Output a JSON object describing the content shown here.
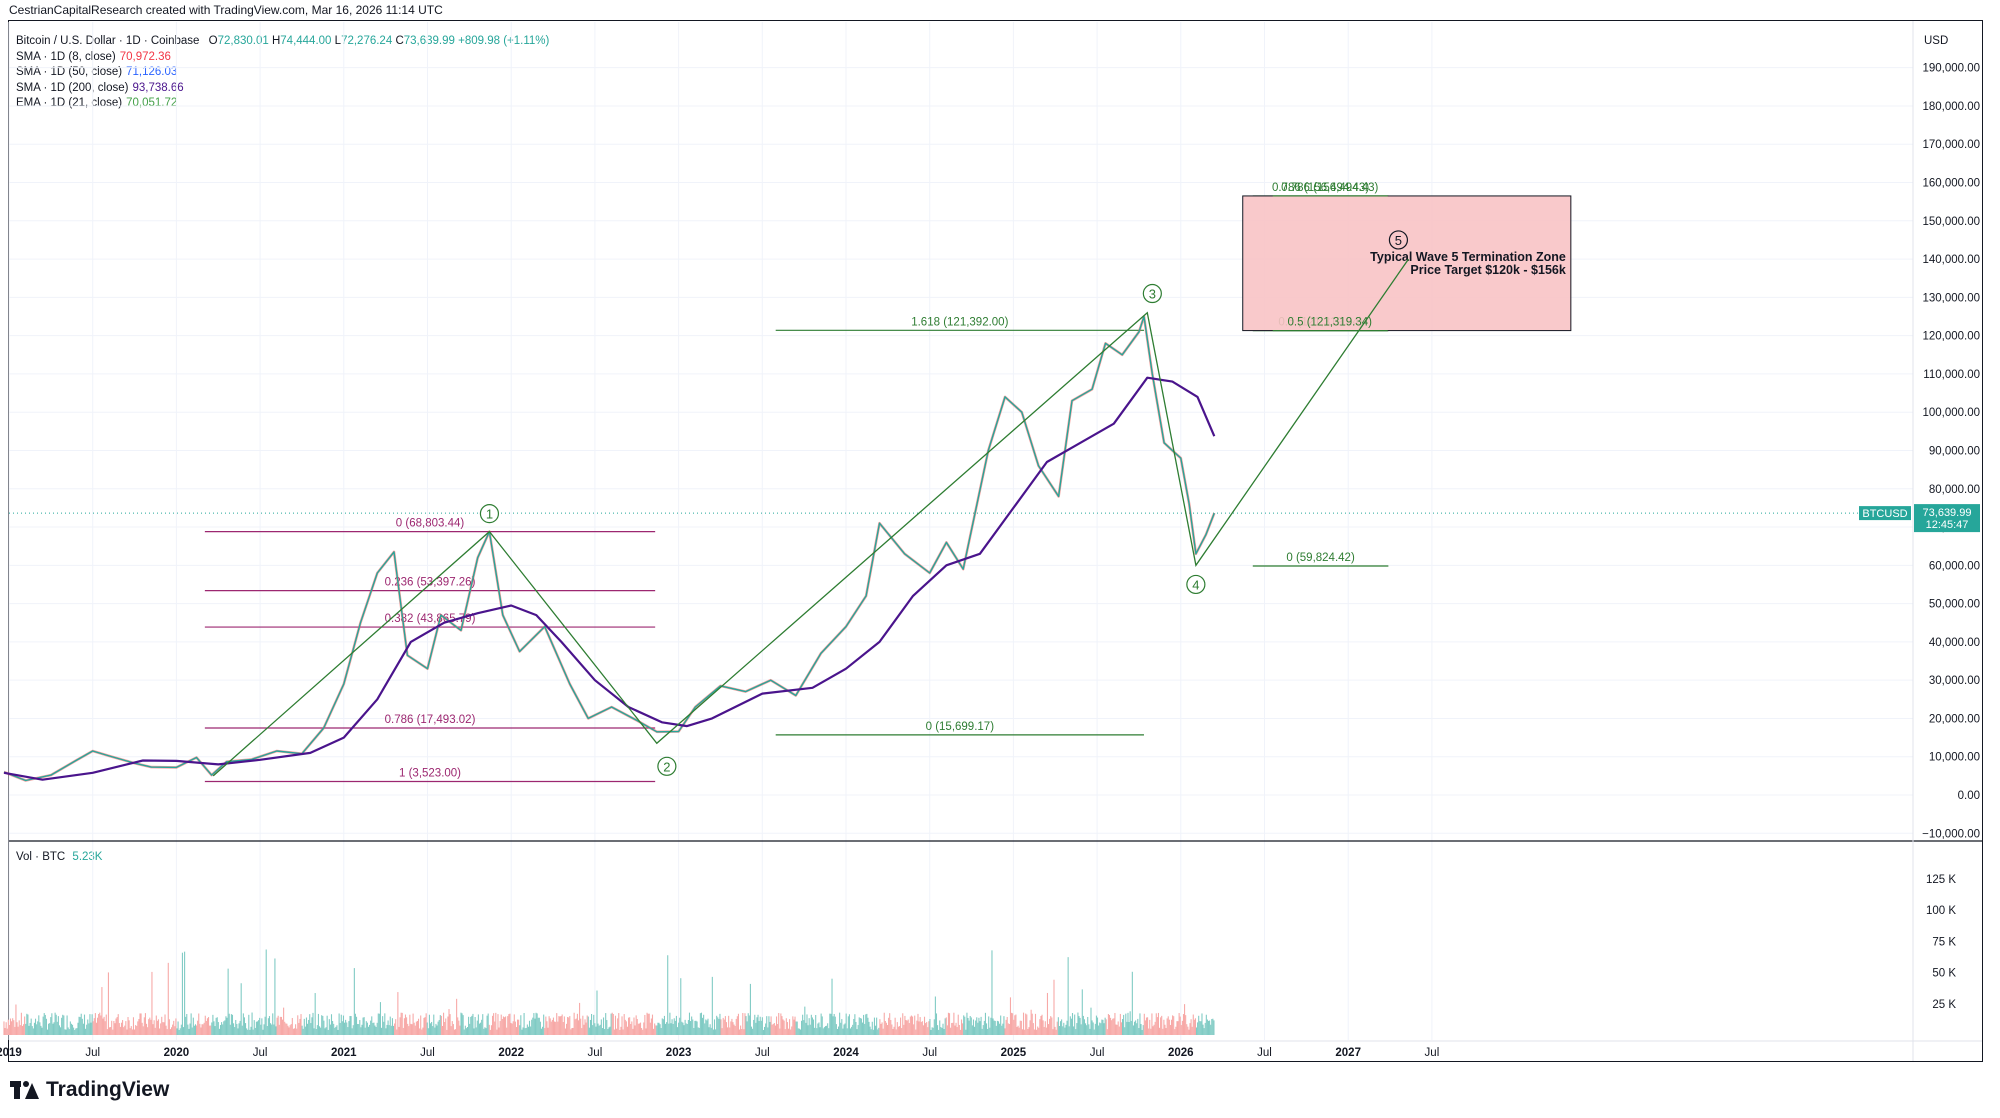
{
  "header": {
    "credit": "CestrianCapitalResearch created with TradingView.com, Mar 16, 2026 11:14 UTC",
    "symbol": "Bitcoin / U.S. Dollar · 1D · Coinbase",
    "ohlc": {
      "o_label": "O",
      "o": "72,830.01",
      "h_label": "H",
      "h": "74,444.00",
      "l_label": "L",
      "l": "72,276.24",
      "c_label": "C",
      "c": "73,639.99",
      "change": "+809.98 (+1.11%)"
    },
    "indicators": [
      {
        "label": "SMA · 1D (8, close)",
        "value": "70,972.36",
        "color": "#f23645"
      },
      {
        "label": "SMA · 1D (50, close)",
        "value": "71,126.03",
        "color": "#2962ff"
      },
      {
        "label": "SMA · 1D (200, close)",
        "value": "93,738.66",
        "color": "#4a148c"
      },
      {
        "label": "EMA · 1D (21, close)",
        "value": "70,051.72",
        "color": "#43a047"
      }
    ],
    "volume": {
      "label": "Vol · BTC",
      "value": "5.23K"
    }
  },
  "colors": {
    "up": "#26a69a",
    "down": "#ef5350",
    "sma8": "#f23645",
    "sma50": "#2962ff",
    "sma200": "#4a148c",
    "ema21": "#43a047",
    "fib_purple": "#9c2770",
    "fib_green": "#2e7d32",
    "zone_fill": "#f8c3c5",
    "price_tag": "#26a69a"
  },
  "chart_data": {
    "type": "line",
    "title": "Bitcoin / U.S. Dollar · 1D · Coinbase",
    "currency": "USD",
    "ylim": [
      -10000,
      200000
    ],
    "log_scale": false,
    "y_ticks": [
      "190,000.00",
      "180,000.00",
      "170,000.00",
      "160,000.00",
      "150,000.00",
      "140,000.00",
      "130,000.00",
      "120,000.00",
      "110,000.00",
      "100,000.00",
      "90,000.00",
      "80,000.00",
      "70,000.00",
      "60,000.00",
      "50,000.00",
      "40,000.00",
      "30,000.00",
      "20,000.00",
      "10,000.00",
      "0.00",
      "−10,000.00"
    ],
    "y_tick_values": [
      190000,
      180000,
      170000,
      160000,
      150000,
      140000,
      130000,
      120000,
      110000,
      100000,
      90000,
      80000,
      70000,
      60000,
      50000,
      40000,
      30000,
      20000,
      10000,
      0,
      -10000
    ],
    "x_ticks": [
      {
        "label": "2019",
        "t": 2019.0,
        "bold": true
      },
      {
        "label": "Jul",
        "t": 2019.5,
        "bold": false
      },
      {
        "label": "2020",
        "t": 2020.0,
        "bold": true
      },
      {
        "label": "Jul",
        "t": 2020.5,
        "bold": false
      },
      {
        "label": "2021",
        "t": 2021.0,
        "bold": true
      },
      {
        "label": "Jul",
        "t": 2021.5,
        "bold": false
      },
      {
        "label": "2022",
        "t": 2022.0,
        "bold": true
      },
      {
        "label": "Jul",
        "t": 2022.5,
        "bold": false
      },
      {
        "label": "2023",
        "t": 2023.0,
        "bold": true
      },
      {
        "label": "Jul",
        "t": 2023.5,
        "bold": false
      },
      {
        "label": "2024",
        "t": 2024.0,
        "bold": true
      },
      {
        "label": "Jul",
        "t": 2024.5,
        "bold": false
      },
      {
        "label": "2025",
        "t": 2025.0,
        "bold": true
      },
      {
        "label": "Jul",
        "t": 2025.5,
        "bold": false
      },
      {
        "label": "2026",
        "t": 2026.0,
        "bold": true
      },
      {
        "label": "Jul",
        "t": 2026.5,
        "bold": false
      },
      {
        "label": "2027",
        "t": 2027.0,
        "bold": true
      },
      {
        "label": "Jul",
        "t": 2027.5,
        "bold": false
      }
    ],
    "vol_ticks": [
      "125 K",
      "100 K",
      "75 K",
      "50 K",
      "25 K"
    ],
    "vol_tick_values": [
      125000,
      100000,
      75000,
      50000,
      25000
    ],
    "vol_ylim": [
      0,
      140000
    ],
    "price_series": [
      [
        2018.97,
        6000
      ],
      [
        2019.1,
        3800
      ],
      [
        2019.25,
        5200
      ],
      [
        2019.4,
        9000
      ],
      [
        2019.5,
        11500
      ],
      [
        2019.6,
        10200
      ],
      [
        2019.75,
        8300
      ],
      [
        2019.85,
        7300
      ],
      [
        2020.0,
        7200
      ],
      [
        2020.12,
        9800
      ],
      [
        2020.21,
        5200
      ],
      [
        2020.3,
        8700
      ],
      [
        2020.45,
        9300
      ],
      [
        2020.6,
        11500
      ],
      [
        2020.75,
        10800
      ],
      [
        2020.88,
        17500
      ],
      [
        2021.0,
        29000
      ],
      [
        2021.1,
        45000
      ],
      [
        2021.2,
        58000
      ],
      [
        2021.3,
        63500
      ],
      [
        2021.38,
        36500
      ],
      [
        2021.5,
        33000
      ],
      [
        2021.58,
        47000
      ],
      [
        2021.7,
        43000
      ],
      [
        2021.8,
        62000
      ],
      [
        2021.87,
        68800
      ],
      [
        2021.95,
        47000
      ],
      [
        2022.05,
        37500
      ],
      [
        2022.2,
        44000
      ],
      [
        2022.35,
        29000
      ],
      [
        2022.46,
        20000
      ],
      [
        2022.6,
        23000
      ],
      [
        2022.75,
        19500
      ],
      [
        2022.87,
        16500
      ],
      [
        2023.0,
        16600
      ],
      [
        2023.1,
        23000
      ],
      [
        2023.25,
        28500
      ],
      [
        2023.4,
        27000
      ],
      [
        2023.55,
        30000
      ],
      [
        2023.7,
        26000
      ],
      [
        2023.85,
        37000
      ],
      [
        2024.0,
        44000
      ],
      [
        2024.12,
        52000
      ],
      [
        2024.2,
        71000
      ],
      [
        2024.35,
        63000
      ],
      [
        2024.5,
        58000
      ],
      [
        2024.6,
        66000
      ],
      [
        2024.7,
        59000
      ],
      [
        2024.85,
        90000
      ],
      [
        2024.95,
        104000
      ],
      [
        2025.05,
        100000
      ],
      [
        2025.15,
        86000
      ],
      [
        2025.27,
        78000
      ],
      [
        2025.35,
        103000
      ],
      [
        2025.47,
        106000
      ],
      [
        2025.55,
        118000
      ],
      [
        2025.65,
        115000
      ],
      [
        2025.75,
        121000
      ],
      [
        2025.78,
        125000
      ],
      [
        2025.83,
        110000
      ],
      [
        2025.9,
        92000
      ],
      [
        2025.95,
        90000
      ],
      [
        2026.0,
        88000
      ],
      [
        2026.05,
        76000
      ],
      [
        2026.09,
        63000
      ],
      [
        2026.15,
        68000
      ],
      [
        2026.2,
        73640
      ]
    ],
    "sma200_series": [
      [
        2018.97,
        5800
      ],
      [
        2019.2,
        4000
      ],
      [
        2019.5,
        5800
      ],
      [
        2019.8,
        9000
      ],
      [
        2020.0,
        8900
      ],
      [
        2020.25,
        8000
      ],
      [
        2020.5,
        9200
      ],
      [
        2020.8,
        11000
      ],
      [
        2021.0,
        15000
      ],
      [
        2021.2,
        25000
      ],
      [
        2021.4,
        40000
      ],
      [
        2021.6,
        45000
      ],
      [
        2021.8,
        47500
      ],
      [
        2022.0,
        49500
      ],
      [
        2022.15,
        47000
      ],
      [
        2022.3,
        40000
      ],
      [
        2022.5,
        30000
      ],
      [
        2022.7,
        23000
      ],
      [
        2022.9,
        19000
      ],
      [
        2023.05,
        18000
      ],
      [
        2023.2,
        20000
      ],
      [
        2023.5,
        26500
      ],
      [
        2023.8,
        28000
      ],
      [
        2024.0,
        33000
      ],
      [
        2024.2,
        40000
      ],
      [
        2024.4,
        52000
      ],
      [
        2024.6,
        60000
      ],
      [
        2024.8,
        63000
      ],
      [
        2025.0,
        75000
      ],
      [
        2025.2,
        87000
      ],
      [
        2025.4,
        92000
      ],
      [
        2025.6,
        97000
      ],
      [
        2025.8,
        109000
      ],
      [
        2025.95,
        108000
      ],
      [
        2026.1,
        104000
      ],
      [
        2026.2,
        93739
      ]
    ],
    "fib_sets": [
      {
        "color": "#9c2770",
        "x_range": [
          2020.17,
          2022.86
        ],
        "levels": [
          {
            "label": "0 (68,803.44)",
            "value": 68803.44
          },
          {
            "label": "0.236 (53,397.26)",
            "value": 53397.26
          },
          {
            "label": "0.382 (43,865.79)",
            "value": 43865.79
          },
          {
            "label": "0.786 (17,493.02)",
            "value": 17493.02
          },
          {
            "label": "1 (3,523.00)",
            "value": 3523.0
          }
        ]
      },
      {
        "color": "#2e7d32",
        "x_range": [
          2023.58,
          2025.78
        ],
        "levels": [
          {
            "label": "1.618 (121,392.00)",
            "value": 121392.0
          },
          {
            "label": "0 (15,699.17)",
            "value": 15699.17
          }
        ]
      },
      {
        "color": "#2e7d32",
        "x_range": [
          2026.43,
          2027.24
        ],
        "levels": [
          {
            "label": "0.786 (156,494.43)",
            "value": 156494.43
          },
          {
            "label": "0.5 (121,319.34)",
            "value": 121319.34
          },
          {
            "label": "0 (59,824.42)",
            "value": 59824.42
          }
        ]
      }
    ],
    "wave_path": [
      [
        2020.22,
        5000
      ],
      [
        2021.87,
        68800
      ],
      [
        2022.87,
        13500
      ],
      [
        2025.8,
        126000
      ],
      [
        2026.09,
        60000
      ],
      [
        2027.36,
        140000
      ]
    ],
    "wave_labels": [
      {
        "label": "1",
        "t": 2021.87,
        "v": 73500
      },
      {
        "label": "2",
        "t": 2022.93,
        "v": 7500
      },
      {
        "label": "3",
        "t": 2025.83,
        "v": 131000
      },
      {
        "label": "4",
        "t": 2026.09,
        "v": 55000
      },
      {
        "label": "5",
        "t": 2027.3,
        "v": 145000
      }
    ],
    "target_zone": {
      "t_start": 2026.37,
      "t_end": 2028.33,
      "v_low": 121319.34,
      "v_high": 156494.43,
      "title": "Typical Wave 5 Termination Zone",
      "subtitle": "Price Target $120k - $156k"
    },
    "last_price": {
      "symbol": "BTCUSD",
      "price": "73,639.99",
      "countdown": "12:45:47",
      "value": 73639.99
    }
  }
}
